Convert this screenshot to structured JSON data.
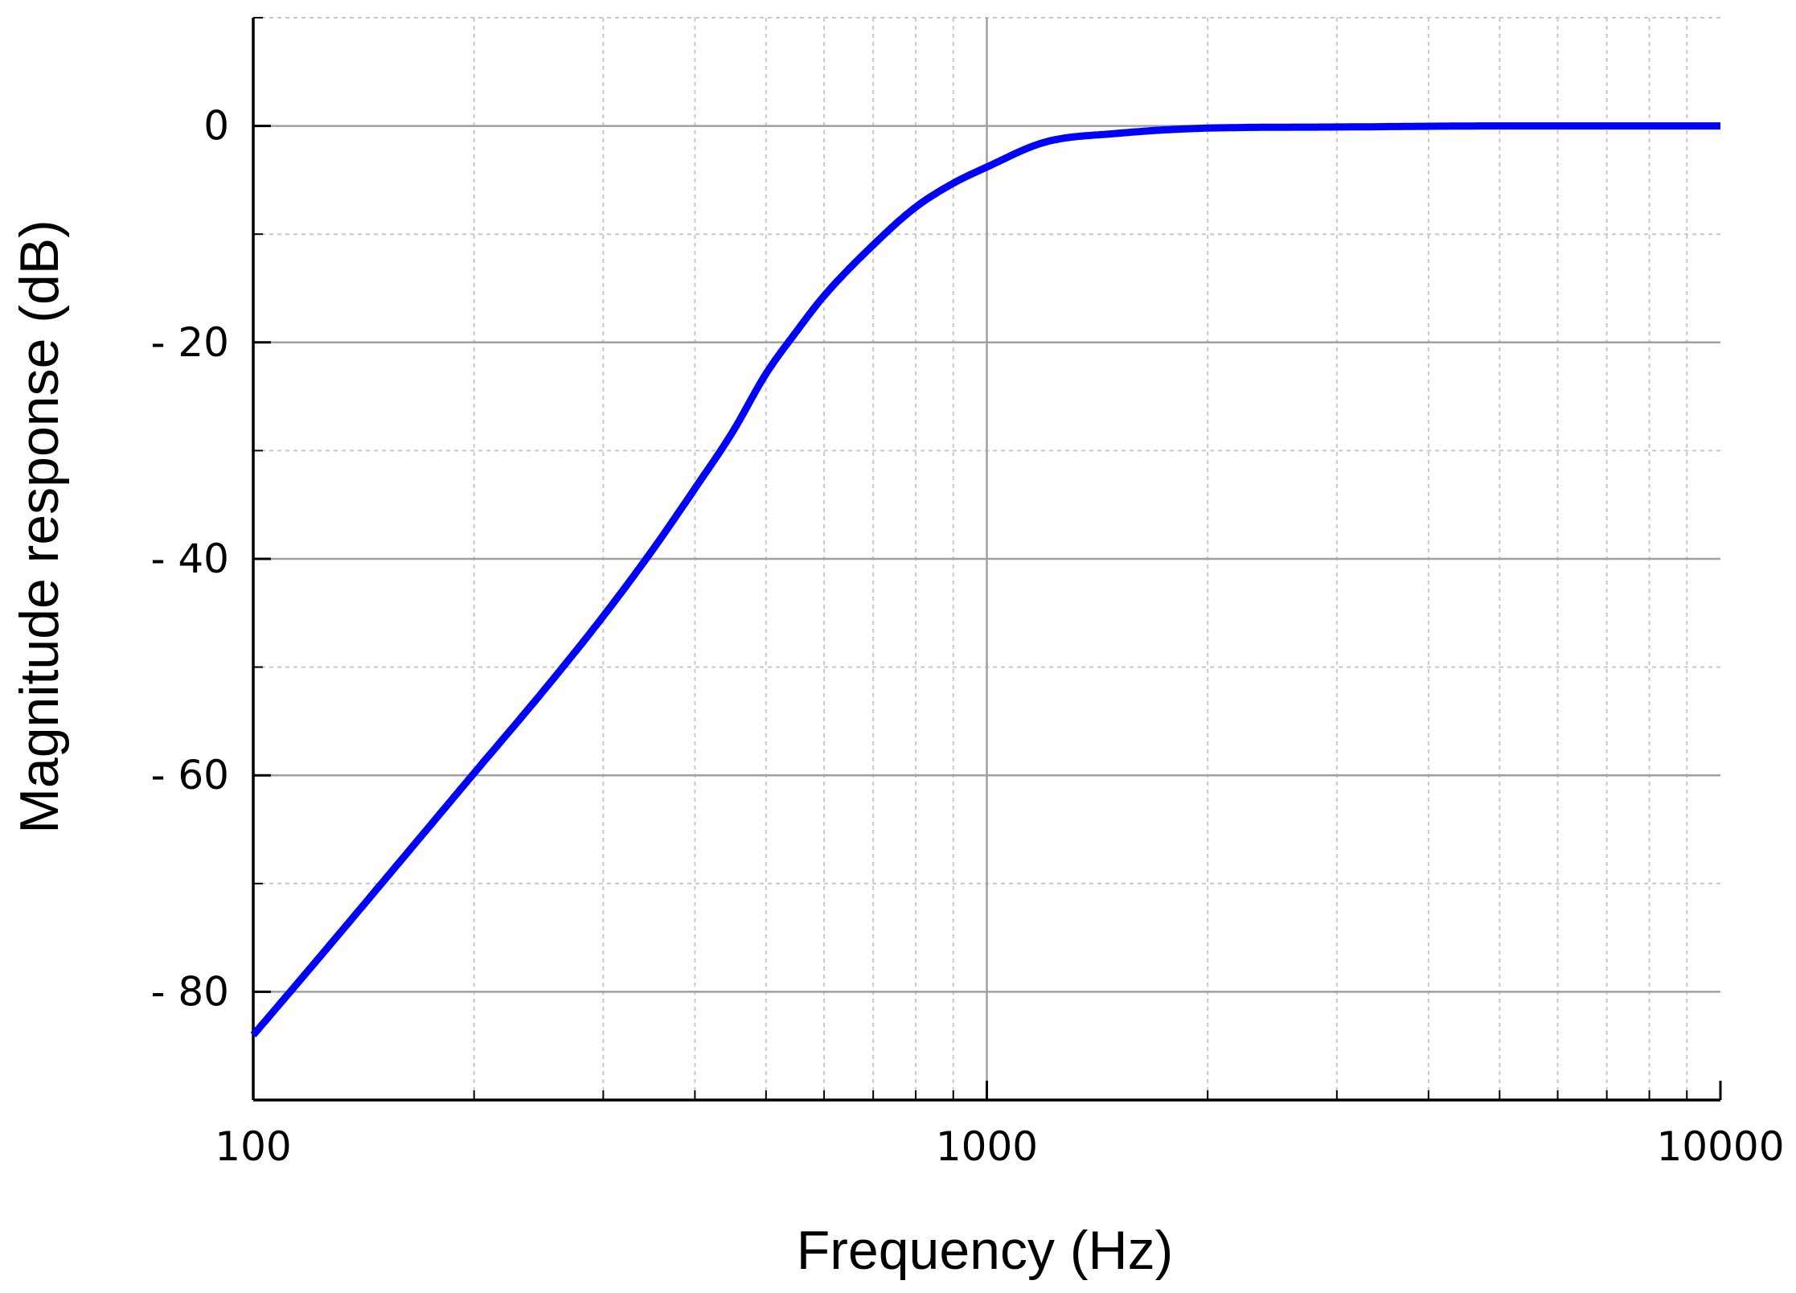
{
  "chart_data": {
    "type": "line",
    "title": "",
    "xlabel": "Frequency (Hz)",
    "ylabel": "Magnitude response (dB)",
    "x_scale": "log",
    "xlim": [
      100,
      10000
    ],
    "ylim": [
      -90,
      10
    ],
    "x_ticks": [
      100,
      1000,
      10000
    ],
    "x_tick_labels": [
      "100",
      "1000",
      "10000"
    ],
    "y_ticks": [
      0,
      -20,
      -40,
      -60,
      -80
    ],
    "y_tick_labels": [
      "0",
      "- 20",
      "- 40",
      "- 60",
      "- 80"
    ],
    "grid": true,
    "legend": "none",
    "colors": {
      "line": "#0000ff",
      "major_grid": "#a0a0a0",
      "minor_grid": "#c8c8c8",
      "axis": "#000000"
    },
    "series": [
      {
        "x": [
          100,
          120,
          150,
          180,
          200,
          250,
          300,
          350,
          400,
          450,
          500,
          550,
          600,
          700,
          800,
          900,
          1000,
          1200,
          1500,
          2000,
          3000,
          5000,
          10000
        ],
        "y": [
          -84,
          -77.7,
          -69.9,
          -63.5,
          -59.8,
          -52.0,
          -45.3,
          -39.2,
          -33.5,
          -28.3,
          -22.9,
          -19.0,
          -15.7,
          -11.0,
          -7.5,
          -5.3,
          -3.8,
          -1.5,
          -0.7,
          -0.2,
          -0.1,
          0,
          0
        ]
      }
    ]
  }
}
